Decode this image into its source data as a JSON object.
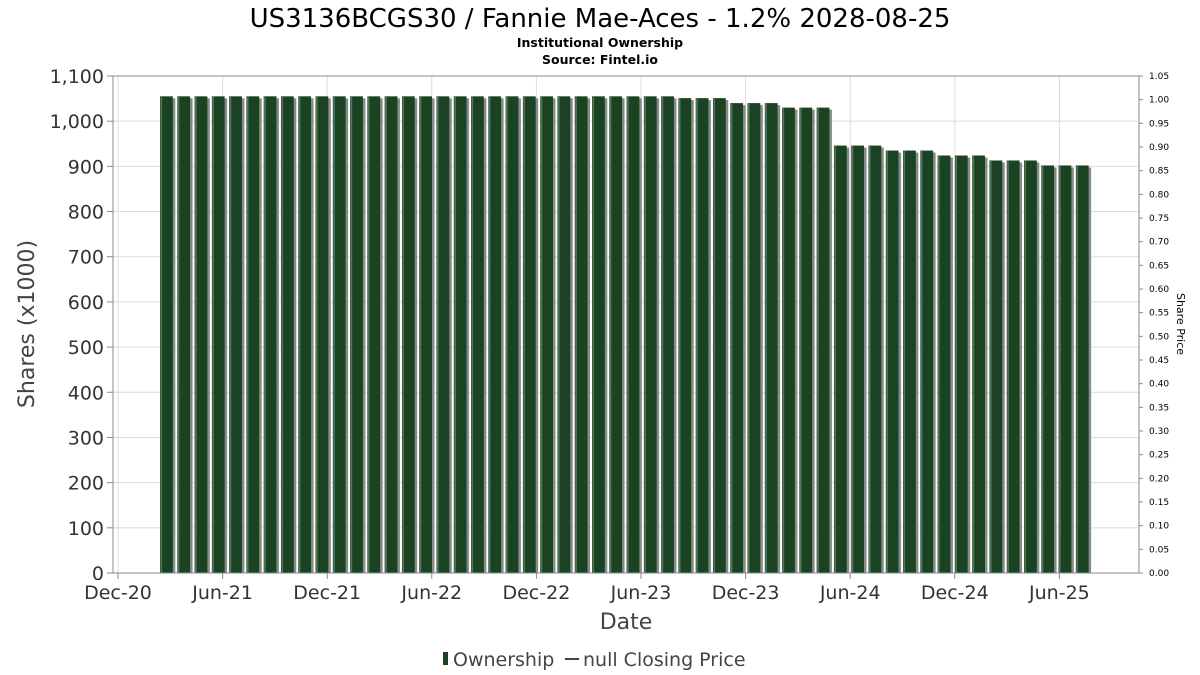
{
  "colors": {
    "bar_fill": "#1b4223",
    "bar_shadow": "#8a8a8a",
    "grid": "#dcdcdc",
    "plot_border": "#888888",
    "price_line": "#444444"
  },
  "chart_data": {
    "type": "bar",
    "title": "US3136BCGS30 / Fannie Mae-Aces - 1.2% 2028-08-25",
    "subtitle_1": "Institutional Ownership",
    "subtitle_2": "Source: Fintel.io",
    "xlabel": "Date",
    "ylabel": "Shares (x1000)",
    "y2label": "Share Price",
    "ylim": [
      0,
      1100
    ],
    "y2lim": [
      0,
      1.05
    ],
    "yticks": [
      "0",
      "100",
      "200",
      "300",
      "400",
      "500",
      "600",
      "700",
      "800",
      "900",
      "1,000",
      "1,100"
    ],
    "y2ticks": [
      "0.00",
      "0.05",
      "0.10",
      "0.15",
      "0.20",
      "0.25",
      "0.30",
      "0.35",
      "0.40",
      "0.45",
      "0.50",
      "0.55",
      "0.60",
      "0.65",
      "0.70",
      "0.75",
      "0.80",
      "0.85",
      "0.90",
      "0.95",
      "1.00",
      "1.05"
    ],
    "xticks": [
      "Dec-20",
      "Jun-21",
      "Dec-21",
      "Jun-22",
      "Dec-22",
      "Jun-23",
      "Dec-23",
      "Jun-24",
      "Dec-24",
      "Jun-25"
    ],
    "grid": true,
    "legend_position": "bottom",
    "series": [
      {
        "name": "Ownership",
        "values": [
          1055,
          1055,
          1055,
          1055,
          1055,
          1055,
          1055,
          1055,
          1055,
          1055,
          1055,
          1055,
          1055,
          1055,
          1055,
          1055,
          1055,
          1055,
          1055,
          1055,
          1055,
          1055,
          1055,
          1055,
          1055,
          1055,
          1055,
          1055,
          1055,
          1055,
          1051,
          1051,
          1051,
          1040,
          1040,
          1040,
          1030,
          1030,
          1030,
          946,
          946,
          946,
          935,
          935,
          935,
          924,
          924,
          924,
          913,
          913,
          913,
          902,
          902,
          902
        ]
      }
    ],
    "legend": {
      "ownership_label": "Ownership",
      "price_label": "null Closing Price"
    }
  }
}
